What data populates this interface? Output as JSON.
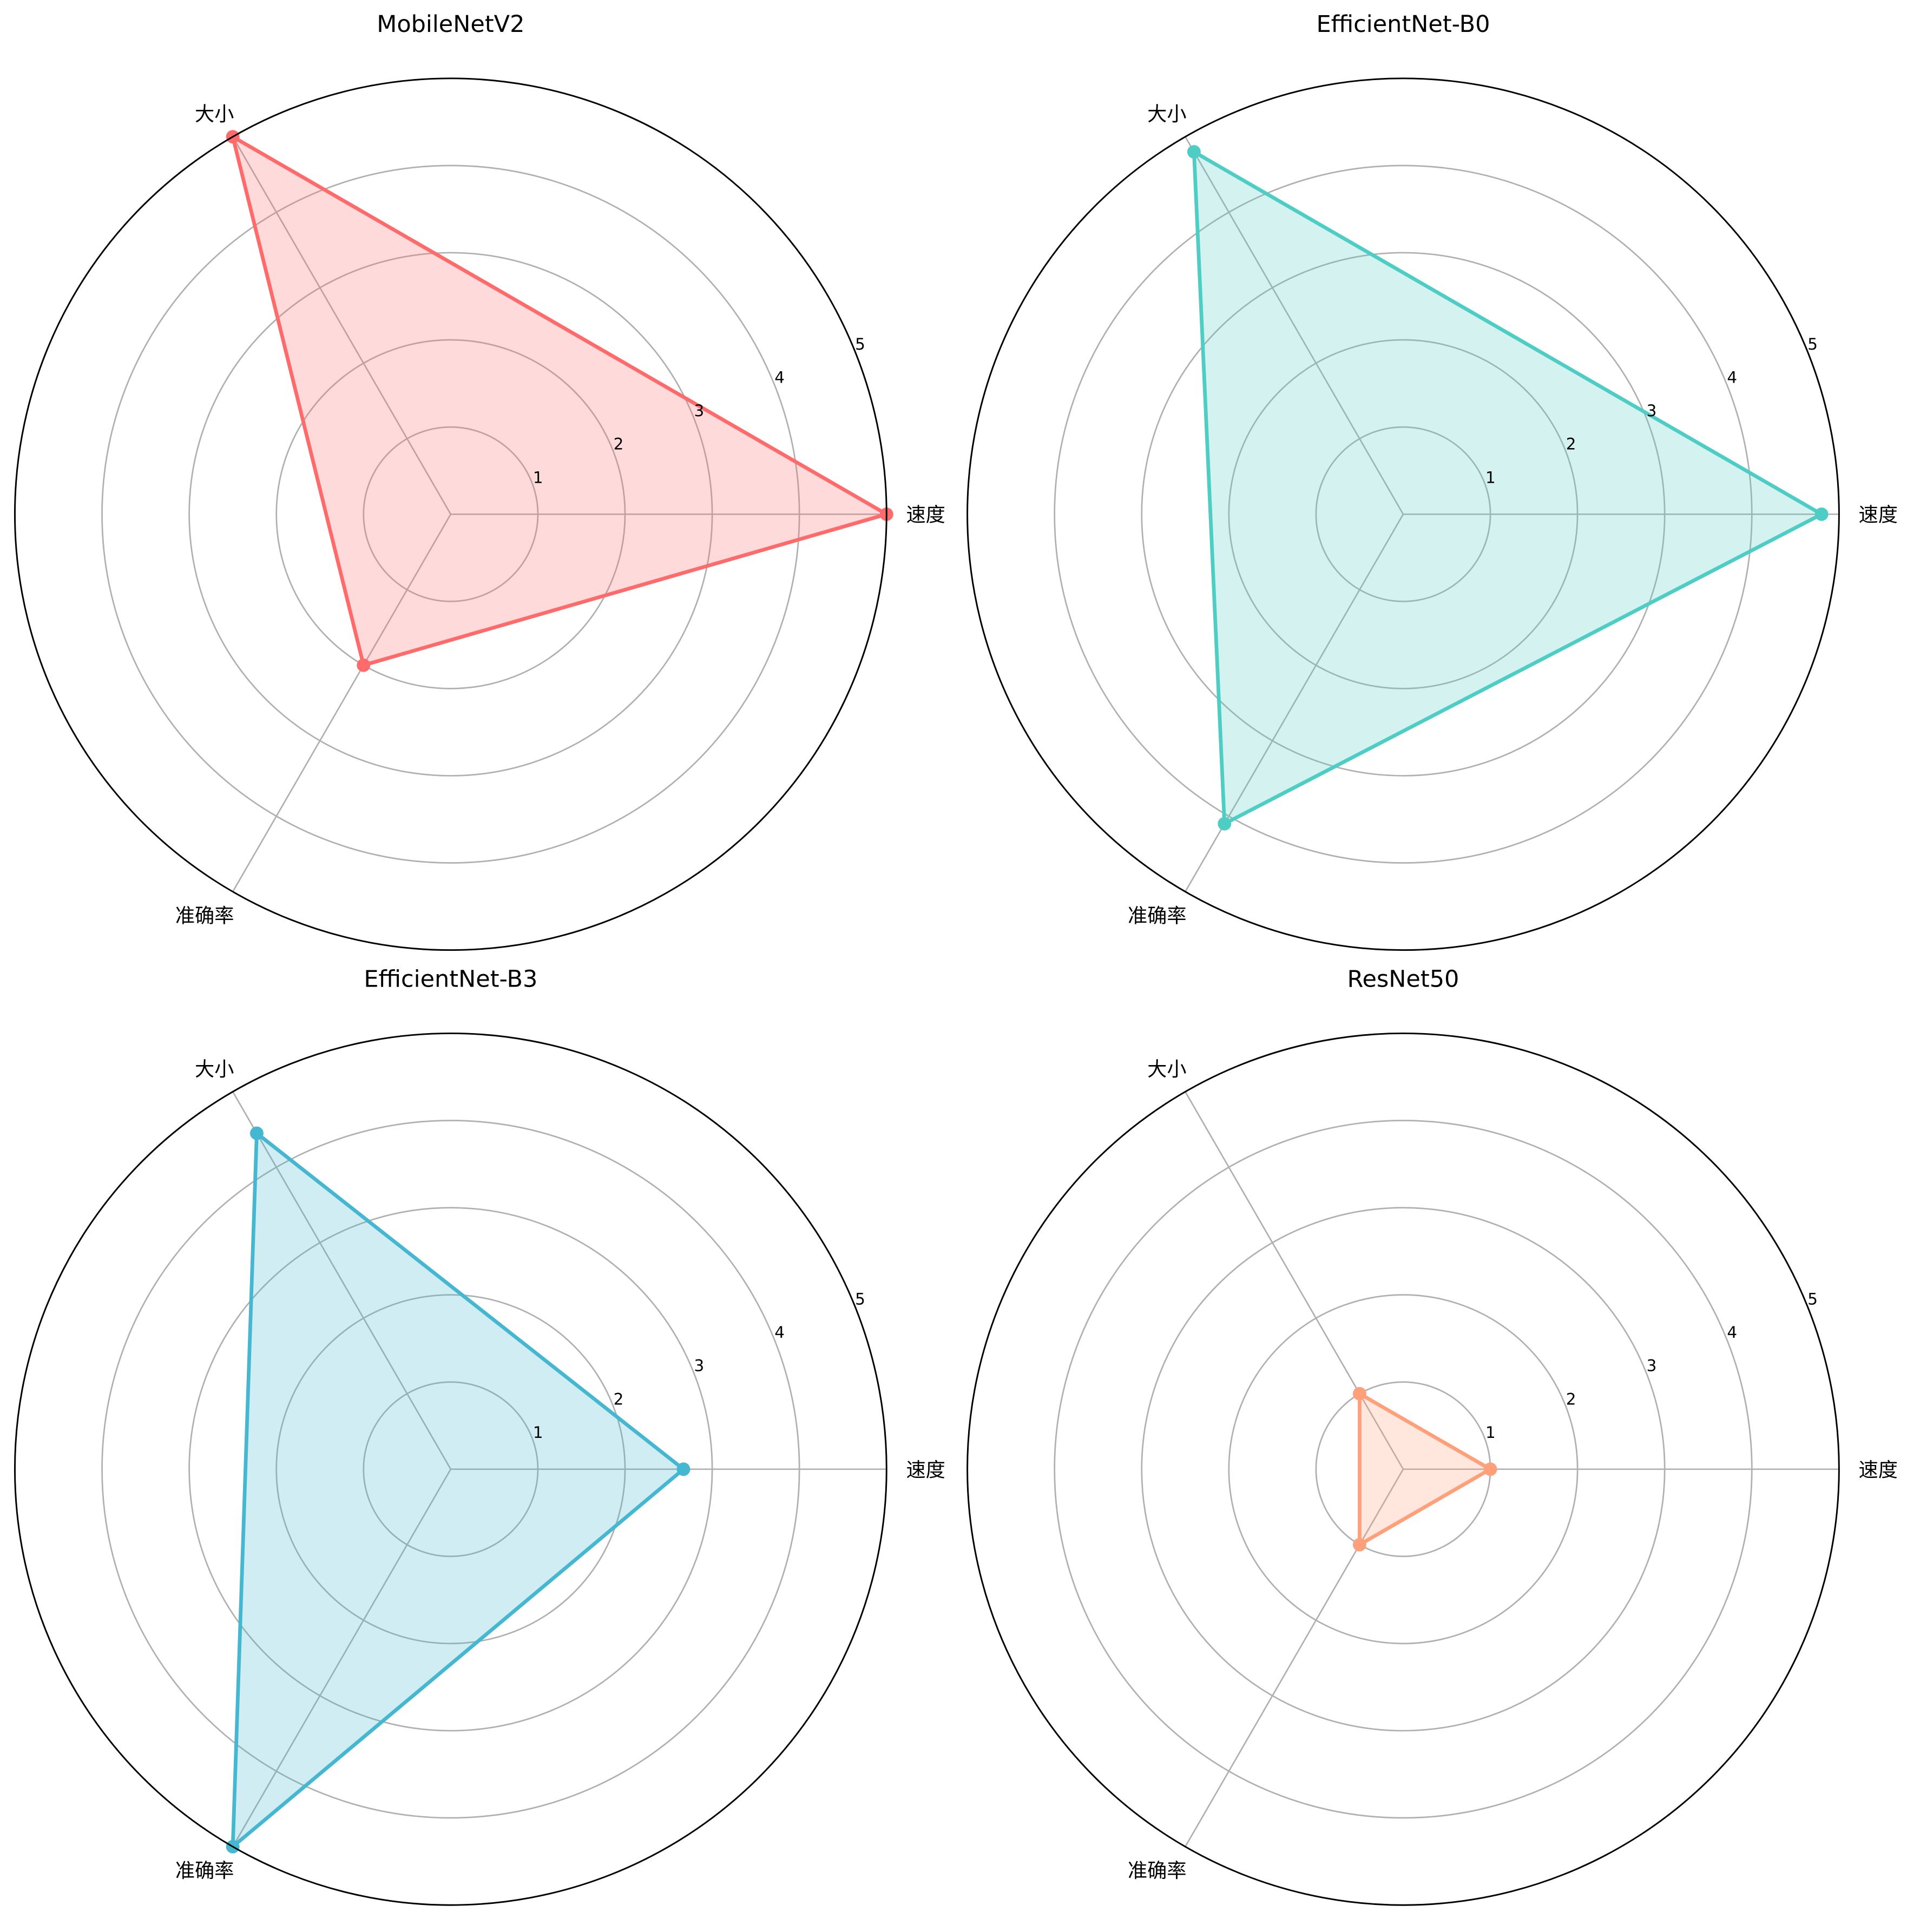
{
  "chart_data": [
    {
      "type": "radar",
      "title": "MobileNetV2",
      "axes": [
        "速度",
        "大小",
        "准确率"
      ],
      "values": [
        5.0,
        5.0,
        2.0
      ],
      "rlim": [
        0,
        5
      ],
      "rticks": [
        1,
        2,
        3,
        4,
        5
      ],
      "color": "#FF6B6B",
      "grid": true
    },
    {
      "type": "radar",
      "title": "EfficientNet-B0",
      "axes": [
        "速度",
        "大小",
        "准确率"
      ],
      "values": [
        4.8,
        4.8,
        4.1
      ],
      "rlim": [
        0,
        5
      ],
      "rticks": [
        1,
        2,
        3,
        4,
        5
      ],
      "color": "#4ECDC4",
      "grid": true
    },
    {
      "type": "radar",
      "title": "EfficientNet-B3",
      "axes": [
        "速度",
        "大小",
        "准确率"
      ],
      "values": [
        2.67,
        4.45,
        5.0
      ],
      "rlim": [
        0,
        5
      ],
      "rticks": [
        1,
        2,
        3,
        4,
        5
      ],
      "color": "#45B7D1",
      "grid": true
    },
    {
      "type": "radar",
      "title": "ResNet50",
      "axes": [
        "速度",
        "大小",
        "准确率"
      ],
      "values": [
        1.0,
        1.0,
        1.0
      ],
      "rlim": [
        0,
        5
      ],
      "rticks": [
        1,
        2,
        3,
        4,
        5
      ],
      "color": "#FFA07A",
      "grid": true
    }
  ]
}
